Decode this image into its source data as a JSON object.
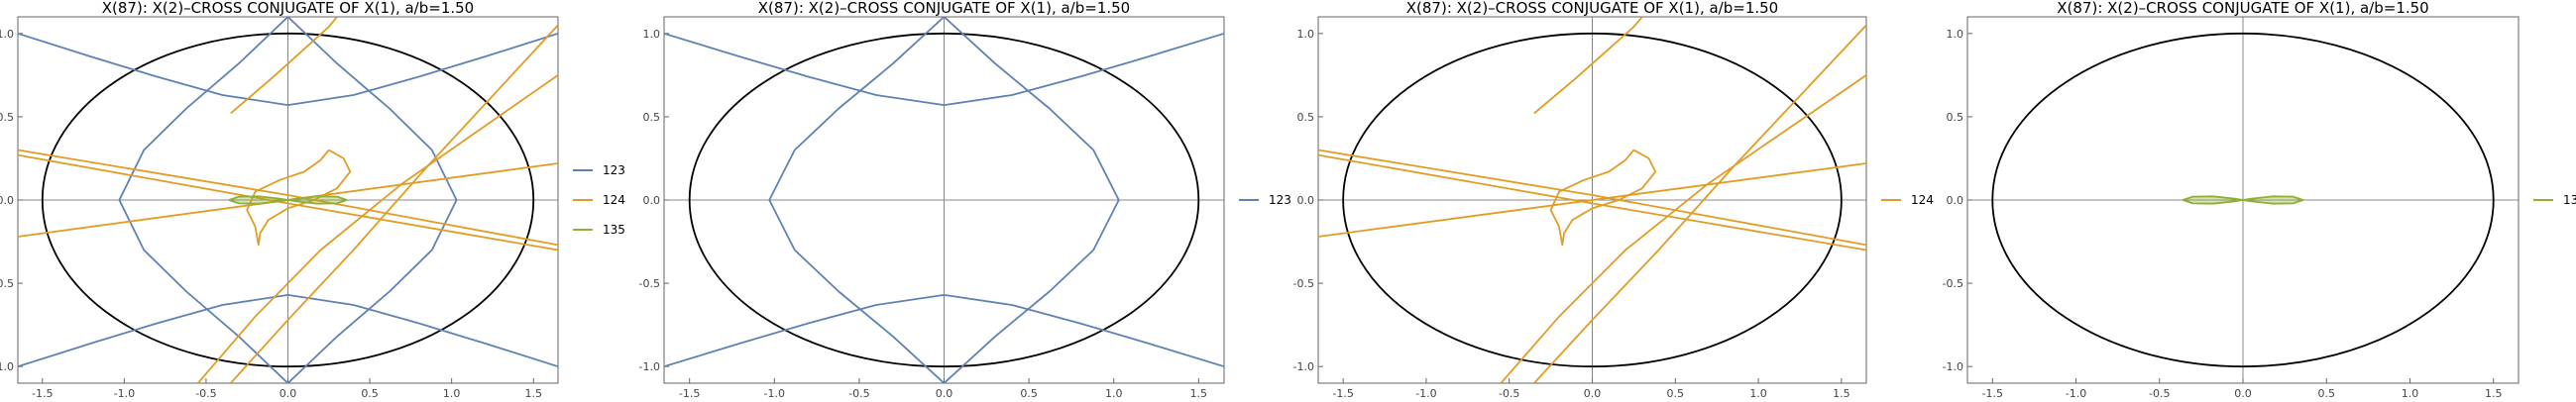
{
  "colors": {
    "123": "#5e81b5",
    "124": "#e19c24",
    "135": "#8fb032",
    "ellipse": "#000000",
    "axes": "#888888",
    "frame": "#666666"
  },
  "chart_data": [
    {
      "type": "line",
      "title": "X(87): X(2)–CROSS CONJUGATE OF X(1), a/b=1.50",
      "xlim": [
        -1.65,
        1.65
      ],
      "ylim": [
        -1.1,
        1.1
      ],
      "xticks": [
        "-1.5",
        "-1.0",
        "-0.5",
        "0.0",
        "0.5",
        "1.0",
        "1.5"
      ],
      "yticks": [
        "-1.0",
        "-0.5",
        "0.0",
        "0.5",
        "1.0"
      ],
      "legend": [
        "123",
        "124",
        "135"
      ],
      "legend_position": "right",
      "ellipse": {
        "a": 1.5,
        "b": 1.0
      },
      "curves": [
        "123",
        "124",
        "135"
      ]
    },
    {
      "type": "line",
      "title": "X(87): X(2)–CROSS CONJUGATE OF X(1), a/b=1.50",
      "xlim": [
        -1.65,
        1.65
      ],
      "ylim": [
        -1.1,
        1.1
      ],
      "xticks": [
        "-1.5",
        "-1.0",
        "-0.5",
        "0.0",
        "0.5",
        "1.0",
        "1.5"
      ],
      "yticks": [
        "-1.0",
        "-0.5",
        "0.0",
        "0.5",
        "1.0"
      ],
      "legend": [
        "123"
      ],
      "legend_position": "right",
      "ellipse": {
        "a": 1.5,
        "b": 1.0
      },
      "curves": [
        "123"
      ]
    },
    {
      "type": "line",
      "title": "X(87): X(2)–CROSS CONJUGATE OF X(1), a/b=1.50",
      "xlim": [
        -1.65,
        1.65
      ],
      "ylim": [
        -1.1,
        1.1
      ],
      "xticks": [
        "-1.5",
        "-1.0",
        "-0.5",
        "0.0",
        "0.5",
        "1.0",
        "1.5"
      ],
      "yticks": [
        "-1.0",
        "-0.5",
        "0.0",
        "0.5",
        "1.0"
      ],
      "legend": [
        "124"
      ],
      "legend_position": "right",
      "ellipse": {
        "a": 1.5,
        "b": 1.0
      },
      "curves": [
        "124"
      ]
    },
    {
      "type": "line",
      "title": "X(87): X(2)–CROSS CONJUGATE OF X(1), a/b=1.50",
      "xlim": [
        -1.65,
        1.65
      ],
      "ylim": [
        -1.1,
        1.1
      ],
      "xticks": [
        "-1.5",
        "-1.0",
        "-0.5",
        "0.0",
        "0.5",
        "1.0",
        "1.5"
      ],
      "yticks": [
        "-1.0",
        "-0.5",
        "0.0",
        "0.5",
        "1.0"
      ],
      "legend": [
        "135"
      ],
      "legend_position": "right",
      "ellipse": {
        "a": 1.5,
        "b": 1.0
      },
      "curves": [
        "135"
      ]
    }
  ],
  "series_data": {
    "123": {
      "name": "123",
      "segments": [
        [
          [
            -1.65,
            1.0
          ],
          [
            -1.2,
            0.86
          ],
          [
            -0.8,
            0.74
          ],
          [
            -0.4,
            0.63
          ],
          [
            0.0,
            0.57
          ],
          [
            0.4,
            0.63
          ],
          [
            0.8,
            0.74
          ],
          [
            1.2,
            0.86
          ],
          [
            1.65,
            1.0
          ]
        ],
        [
          [
            -1.65,
            -1.0
          ],
          [
            -1.2,
            -0.86
          ],
          [
            -0.8,
            -0.74
          ],
          [
            -0.4,
            -0.63
          ],
          [
            0.0,
            -0.57
          ],
          [
            0.4,
            -0.63
          ],
          [
            0.8,
            -0.74
          ],
          [
            1.2,
            -0.86
          ],
          [
            1.65,
            -1.0
          ]
        ],
        [
          [
            0.0,
            1.1
          ],
          [
            -0.3,
            0.82
          ],
          [
            -0.62,
            0.55
          ],
          [
            -0.88,
            0.3
          ],
          [
            -1.03,
            0.0
          ],
          [
            -0.88,
            -0.3
          ],
          [
            -0.62,
            -0.55
          ],
          [
            -0.3,
            -0.82
          ],
          [
            0.0,
            -1.1
          ]
        ],
        [
          [
            0.0,
            1.1
          ],
          [
            0.3,
            0.82
          ],
          [
            0.62,
            0.55
          ],
          [
            0.88,
            0.3
          ],
          [
            1.03,
            0.0
          ],
          [
            0.88,
            -0.3
          ],
          [
            0.62,
            -0.55
          ],
          [
            0.3,
            -0.82
          ],
          [
            0.0,
            -1.1
          ]
        ]
      ]
    },
    "124": {
      "name": "124",
      "segments": [
        [
          [
            -1.65,
            0.3
          ],
          [
            0.0,
            0.03
          ],
          [
            1.65,
            -0.27
          ]
        ],
        [
          [
            -1.65,
            0.27
          ],
          [
            0.0,
            -0.02
          ],
          [
            1.65,
            -0.3
          ]
        ],
        [
          [
            -1.65,
            -0.22
          ],
          [
            1.65,
            0.22
          ]
        ],
        [
          [
            -0.35,
            0.52
          ],
          [
            -0.1,
            0.73
          ],
          [
            0.25,
            1.04
          ],
          [
            0.3,
            1.1
          ]
        ],
        [
          [
            -0.35,
            -1.1
          ],
          [
            0.0,
            -0.72
          ],
          [
            0.4,
            -0.3
          ],
          [
            0.85,
            0.2
          ],
          [
            1.65,
            1.05
          ]
        ],
        [
          [
            -0.55,
            -1.1
          ],
          [
            -0.2,
            -0.7
          ],
          [
            0.2,
            -0.3
          ],
          [
            0.7,
            0.1
          ],
          [
            1.65,
            0.75
          ]
        ],
        [
          [
            0.25,
            0.3
          ],
          [
            0.34,
            0.25
          ],
          [
            0.38,
            0.17
          ],
          [
            0.3,
            0.07
          ],
          [
            0.16,
            0.0
          ],
          [
            0.0,
            -0.05
          ],
          [
            -0.12,
            -0.12
          ],
          [
            -0.17,
            -0.2
          ],
          [
            -0.18,
            -0.27
          ],
          [
            -0.2,
            -0.16
          ],
          [
            -0.25,
            -0.06
          ],
          [
            -0.2,
            0.05
          ],
          [
            -0.05,
            0.12
          ],
          [
            0.1,
            0.17
          ],
          [
            0.2,
            0.24
          ],
          [
            0.25,
            0.3
          ]
        ]
      ]
    },
    "135": {
      "name": "135",
      "segments": [
        [
          [
            -0.36,
            0.0
          ],
          [
            -0.3,
            0.02
          ],
          [
            -0.18,
            0.022
          ],
          [
            -0.05,
            0.008
          ],
          [
            0.0,
            0.0
          ],
          [
            0.05,
            0.008
          ],
          [
            0.18,
            0.022
          ],
          [
            0.3,
            0.02
          ],
          [
            0.36,
            0.0
          ],
          [
            0.3,
            -0.02
          ],
          [
            0.18,
            -0.022
          ],
          [
            0.05,
            -0.008
          ],
          [
            0.0,
            0.0
          ],
          [
            -0.05,
            -0.008
          ],
          [
            -0.18,
            -0.022
          ],
          [
            -0.3,
            -0.02
          ],
          [
            -0.36,
            0.0
          ]
        ]
      ]
    }
  }
}
